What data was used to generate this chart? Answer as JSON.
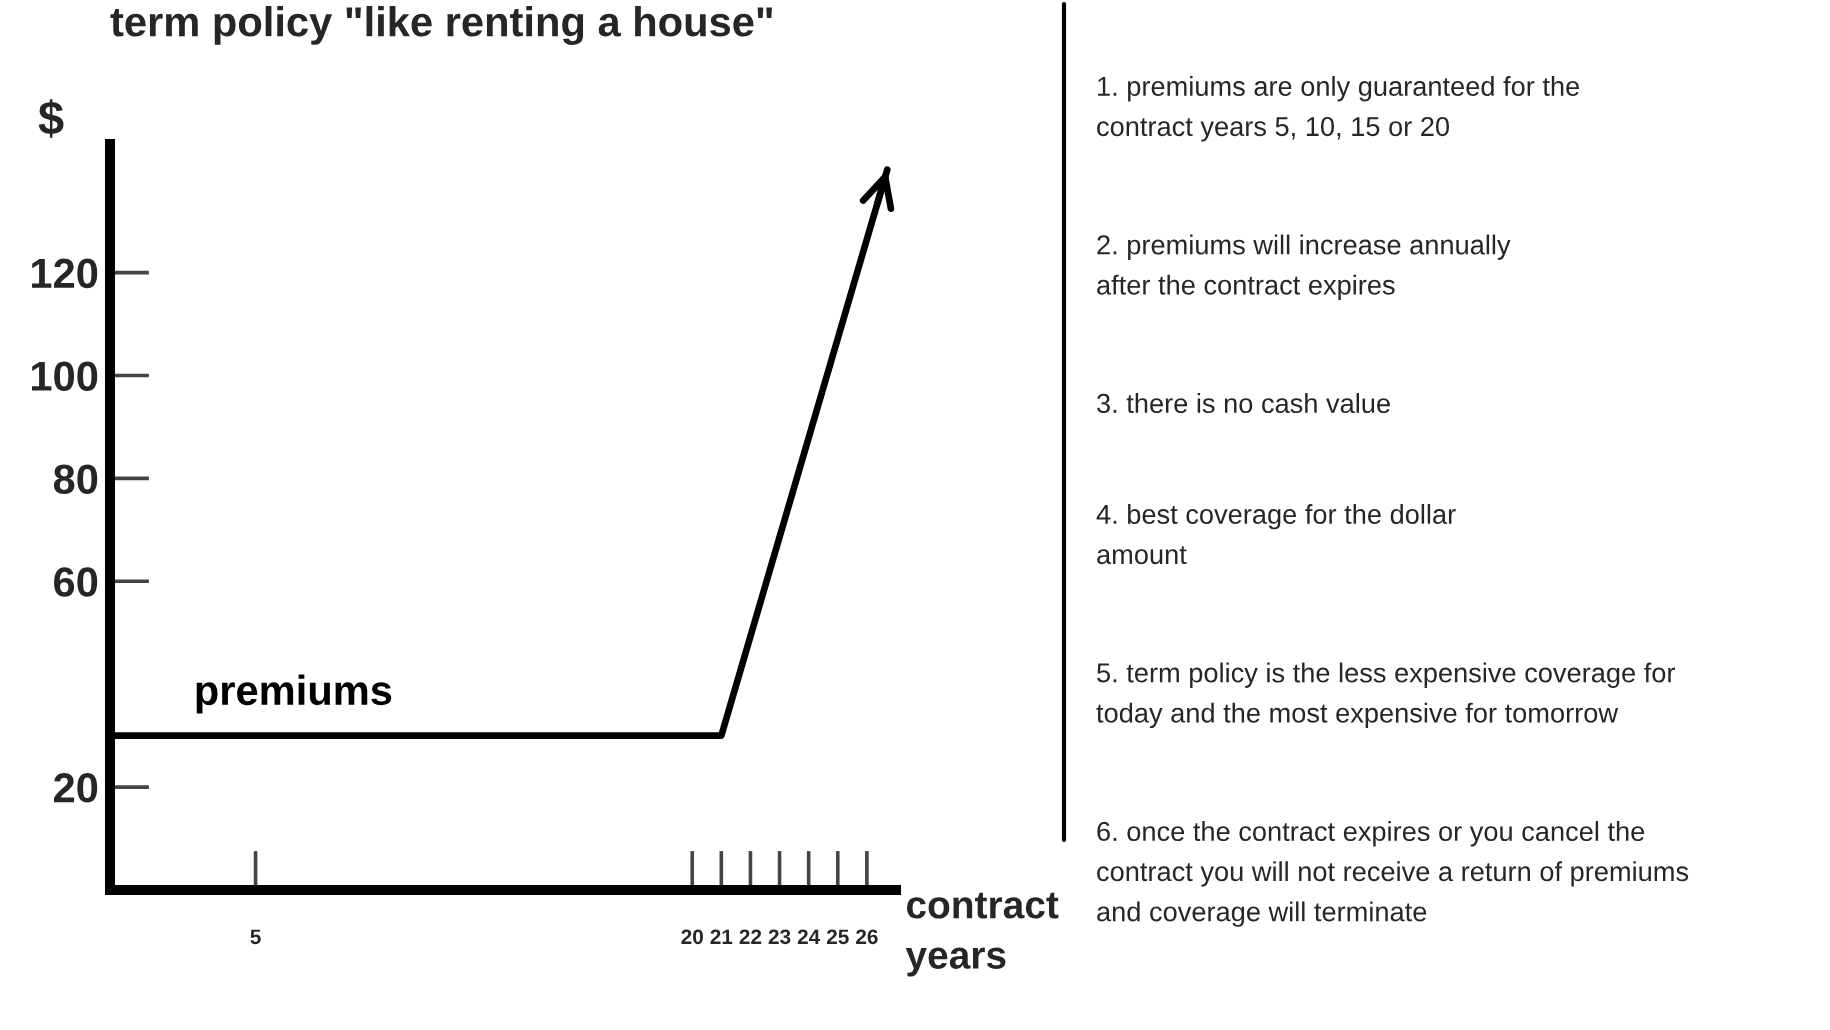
{
  "chart_data": {
    "type": "line",
    "title": "term policy \"like renting a house\"",
    "ylabel": "$",
    "xlabel": "contract\nyears",
    "x": [
      0,
      21,
      26.7
    ],
    "series": [
      {
        "name": "premiums",
        "color": "#000000",
        "values": [
          30,
          30,
          140
        ]
      }
    ],
    "xlim": [
      0,
      27
    ],
    "xticks": [
      5,
      20,
      21,
      22,
      23,
      24,
      25,
      26
    ],
    "ylim": [
      0,
      145
    ],
    "yticks": [
      20,
      60,
      80,
      100,
      120
    ],
    "line_style": "solid",
    "annotations": [
      "1. premiums are only guaranteed for the\ncontract years 5, 10, 15 or 20",
      "2. premiums will increase annually\nafter the contract expires",
      "3. there is no cash value",
      "4. best coverage for the dollar\namount",
      "5. term policy is the less expensive coverage for\ntoday and the most expensive for tomorrow",
      "6. once the contract expires or you cancel the\ncontract you will not receive a return of premiums\nand coverage will terminate"
    ]
  }
}
